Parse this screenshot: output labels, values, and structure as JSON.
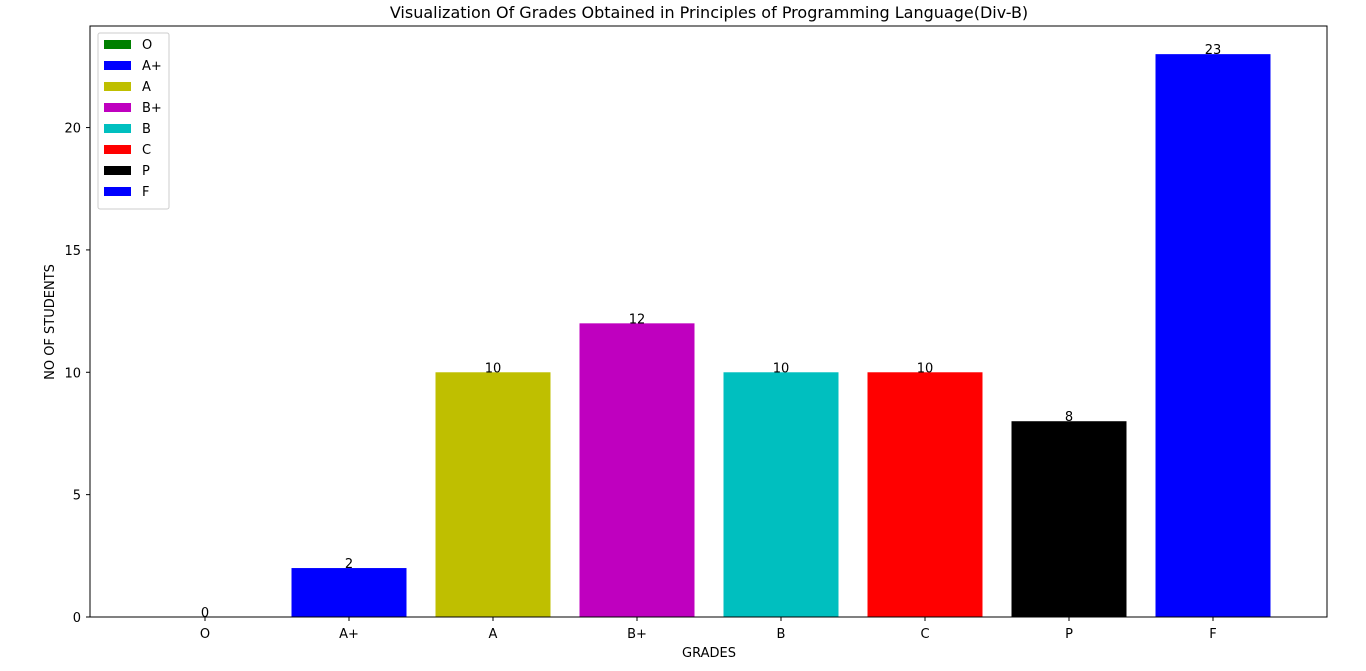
{
  "chart_data": {
    "type": "bar",
    "title": "Visualization Of Grades Obtained in Principles of Programming Language(Div-B)",
    "xlabel": "GRADES",
    "ylabel": "NO OF STUDENTS",
    "categories": [
      "O",
      "A+",
      "A",
      "B+",
      "B",
      "C",
      "P",
      "F"
    ],
    "values": [
      0,
      2,
      10,
      12,
      10,
      10,
      8,
      23
    ],
    "colors": [
      "#008000",
      "#0000ff",
      "#bfbf00",
      "#bf00bf",
      "#00bfbf",
      "#ff0000",
      "#000000",
      "#0000ff"
    ],
    "ylim": [
      0,
      24.15
    ],
    "yticks": [
      0,
      5,
      10,
      15,
      20
    ],
    "grid": false,
    "legend_position": "top-left",
    "legend": [
      {
        "label": "O",
        "color": "#008000"
      },
      {
        "label": "A+",
        "color": "#0000ff"
      },
      {
        "label": "A",
        "color": "#bfbf00"
      },
      {
        "label": "B+",
        "color": "#bf00bf"
      },
      {
        "label": "B",
        "color": "#00bfbf"
      },
      {
        "label": "C",
        "color": "#ff0000"
      },
      {
        "label": "P",
        "color": "#000000"
      },
      {
        "label": "F",
        "color": "#0000ff"
      }
    ]
  }
}
